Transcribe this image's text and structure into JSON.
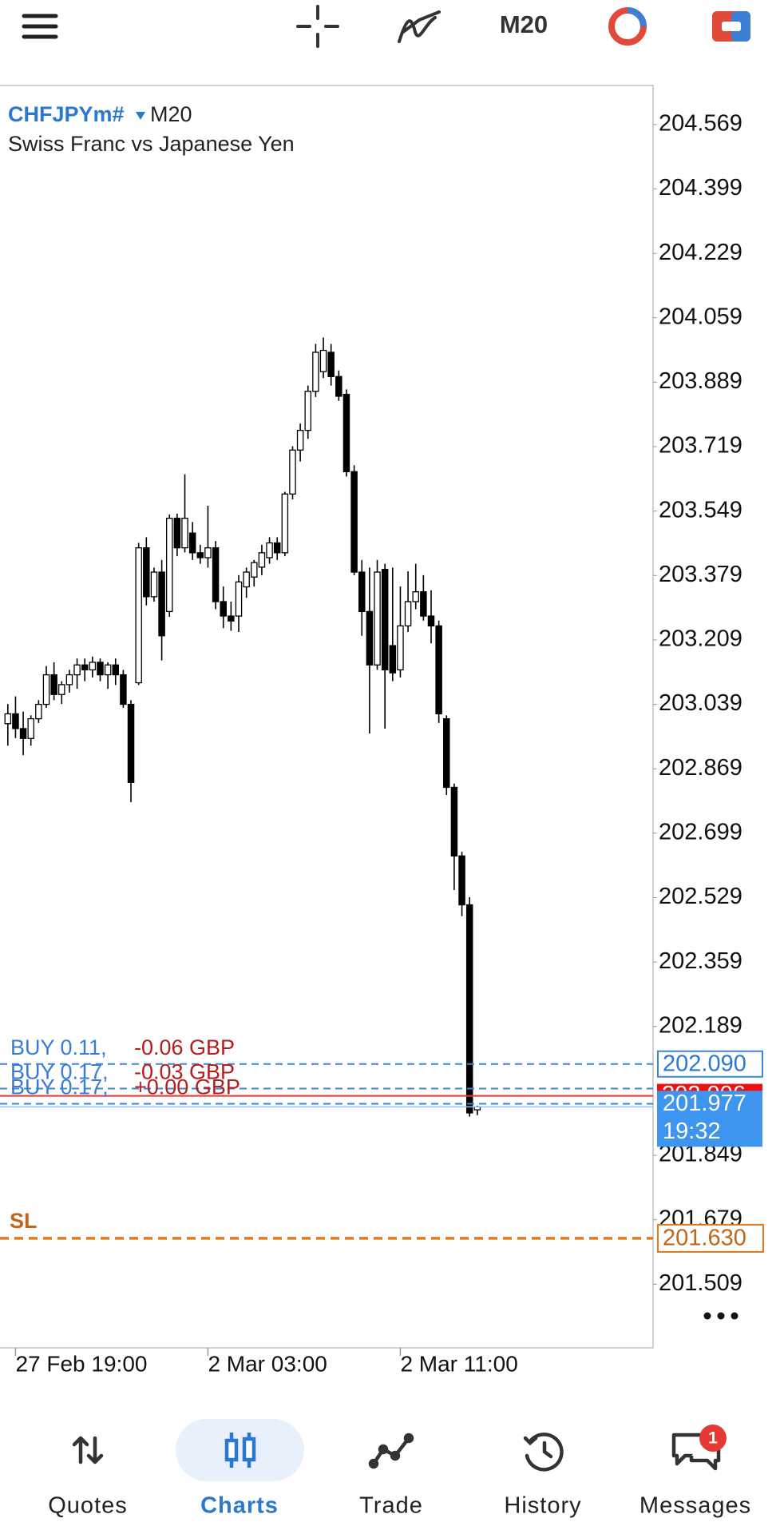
{
  "toolbar": {
    "timeframe": "M20"
  },
  "chart_data": {
    "type": "candlestick",
    "symbol": "CHFJPYm#",
    "timeframe": "M20",
    "description": "Swiss Franc vs Japanese Yen",
    "ylim": [
      201.341,
      204.672
    ],
    "yticks": [
      204.569,
      204.399,
      204.229,
      204.059,
      203.889,
      203.719,
      203.549,
      203.379,
      203.209,
      203.039,
      202.869,
      202.699,
      202.529,
      202.359,
      202.189,
      201.849,
      201.679,
      201.509
    ],
    "xticks": [
      {
        "value": 1,
        "label": "27 Feb 19:00"
      },
      {
        "value": 26,
        "label": "2 Mar 03:00"
      },
      {
        "value": 51,
        "label": "2 Mar 11:00"
      }
    ],
    "open": [
      202.988,
      203.014,
      202.975,
      202.949,
      203.001,
      203.039,
      203.117,
      203.065,
      203.091,
      203.117,
      203.143,
      203.13,
      203.15,
      203.117,
      203.143,
      203.117,
      203.039,
      203.096,
      203.452,
      203.323,
      203.388,
      203.284,
      203.53,
      203.452,
      203.491,
      203.439,
      203.426,
      203.452,
      203.31,
      203.272,
      203.272,
      203.349,
      203.375,
      203.401,
      203.426,
      203.465,
      203.439,
      203.594,
      203.71,
      203.762,
      203.865,
      203.917,
      203.968,
      203.904,
      203.857,
      203.653,
      203.388,
      203.284,
      203.143,
      203.395,
      203.194,
      203.13,
      203.246,
      203.31,
      203.336,
      203.272,
      203.246,
      203.001,
      202.82,
      202.639,
      202.51,
      201.969
    ],
    "high": [
      203.04,
      203.06,
      203.02,
      203.01,
      203.05,
      203.14,
      203.15,
      203.1,
      203.13,
      203.16,
      203.16,
      203.165,
      203.16,
      203.15,
      203.16,
      203.13,
      203.05,
      203.465,
      203.48,
      203.4,
      203.42,
      203.54,
      203.542,
      203.646,
      203.52,
      203.46,
      203.563,
      203.47,
      203.35,
      203.31,
      203.38,
      203.4,
      203.42,
      203.46,
      203.48,
      203.48,
      203.6,
      203.72,
      203.78,
      203.88,
      203.99,
      204.007,
      203.99,
      203.92,
      203.87,
      203.67,
      203.42,
      203.4,
      203.42,
      203.41,
      203.4,
      203.35,
      203.39,
      203.41,
      203.38,
      203.34,
      203.26,
      203.01,
      202.83,
      202.65,
      202.53,
      201.98
    ],
    "low": [
      202.93,
      202.95,
      202.905,
      202.93,
      202.99,
      203.03,
      203.05,
      203.04,
      203.07,
      203.08,
      203.1,
      203.11,
      203.1,
      203.08,
      203.09,
      203.03,
      202.781,
      203.09,
      203.3,
      203.31,
      203.155,
      203.27,
      203.43,
      203.44,
      203.42,
      203.41,
      203.4,
      203.29,
      203.24,
      203.233,
      203.23,
      203.32,
      203.35,
      203.38,
      203.41,
      203.42,
      203.43,
      203.58,
      203.68,
      203.74,
      203.85,
      203.9,
      203.88,
      203.84,
      203.64,
      203.38,
      203.22,
      202.962,
      203.13,
      202.975,
      203.1,
      203.11,
      203.23,
      203.29,
      203.26,
      203.2,
      202.99,
      202.8,
      202.549,
      202.48,
      201.951,
      201.955
    ],
    "close": [
      203.014,
      202.975,
      202.949,
      203.001,
      203.039,
      203.117,
      203.065,
      203.091,
      203.117,
      203.143,
      203.13,
      203.15,
      203.117,
      203.143,
      203.117,
      203.039,
      202.833,
      203.452,
      203.323,
      203.388,
      203.22,
      203.53,
      203.452,
      203.53,
      203.439,
      203.426,
      203.452,
      203.31,
      203.272,
      203.259,
      203.362,
      203.388,
      203.413,
      203.439,
      203.465,
      203.439,
      203.594,
      203.71,
      203.762,
      203.865,
      203.968,
      203.973,
      203.904,
      203.852,
      203.653,
      203.388,
      203.284,
      203.143,
      203.388,
      203.13,
      203.122,
      203.246,
      203.31,
      203.336,
      203.272,
      203.246,
      203.014,
      202.82,
      202.639,
      202.51,
      201.961,
      201.977
    ],
    "orders": [
      {
        "text": "BUY 0.11,",
        "profit": "-0.06 GBP",
        "price": {
          "value": 202.09,
          "label": "202.090"
        }
      },
      {
        "text": "BUY 0.17,",
        "profit": "-0.03 GBP",
        "price": 202.025
      },
      {
        "text": "BUY 0.17,",
        "profit": "+0.00 GBP",
        "price": 201.985
      }
    ],
    "stop_loss": {
      "text": "SL",
      "price": {
        "value": 201.63,
        "label": "201.630"
      }
    },
    "ask_price": 202.006,
    "bid_price": 201.977,
    "bid_time": "19:32"
  },
  "nav": {
    "tabs": [
      "Quotes",
      "Charts",
      "Trade",
      "History",
      "Messages"
    ],
    "active": 1,
    "badge": 1
  }
}
